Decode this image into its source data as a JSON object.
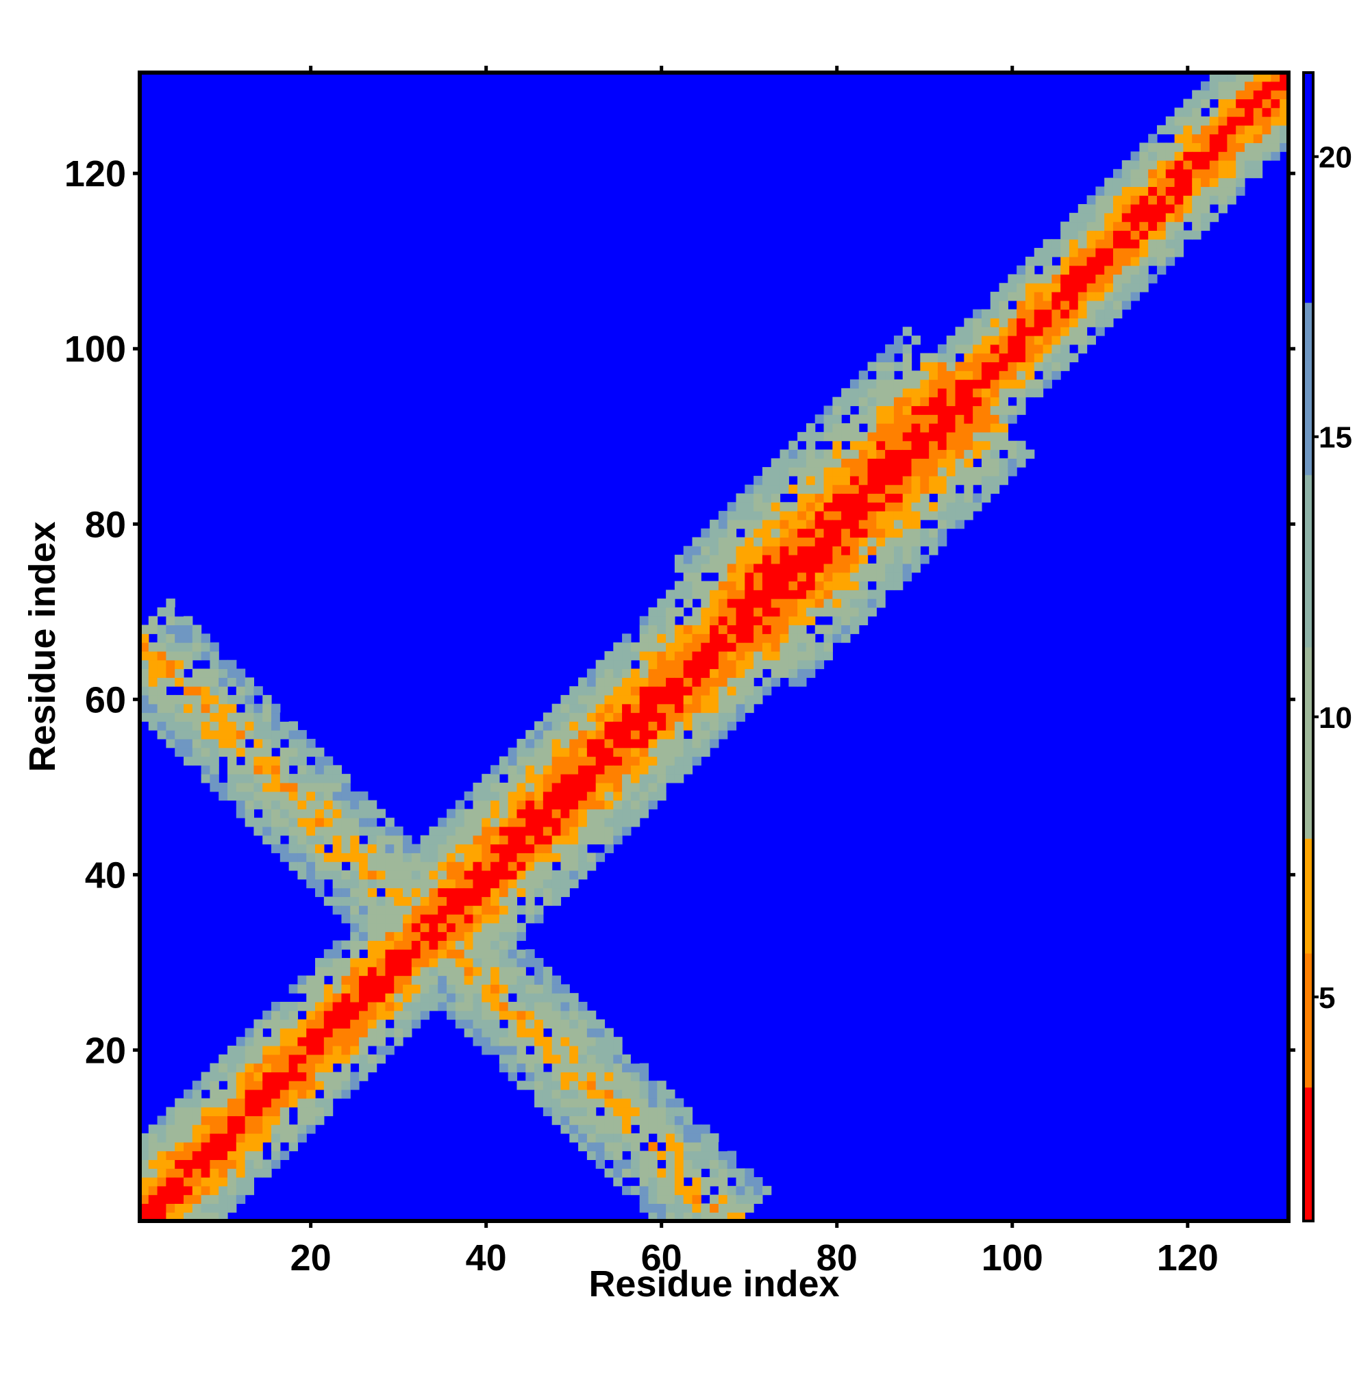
{
  "chart_data": {
    "type": "heatmap",
    "title": "",
    "xlabel": "Residue index",
    "ylabel": "Residue index",
    "xlim": [
      1,
      131
    ],
    "ylim": [
      1,
      131
    ],
    "x_ticks": [
      20,
      40,
      60,
      80,
      100,
      120
    ],
    "y_ticks": [
      20,
      40,
      60,
      80,
      100,
      120
    ],
    "n_residues": 131,
    "colorbar": {
      "min": 1,
      "max": 21.5,
      "ticks": [
        5,
        10,
        15,
        20
      ],
      "colors": [
        "#ff0000",
        "#ff8000",
        "#ffa500",
        "#9fb89a",
        "#8fb3a8",
        "#6f97c2",
        "#0000ff"
      ]
    },
    "value_description": "distance map: near-zero on the diagonal, increasing away from it, saturating at the maximum",
    "diagonal_band": [
      {
        "from": 1,
        "to": 36,
        "halfwidth": 9
      },
      {
        "from": 36,
        "to": 68,
        "halfwidth": 11
      },
      {
        "from": 68,
        "to": 95,
        "halfwidth": 14
      },
      {
        "from": 95,
        "to": 131,
        "halfwidth": 8
      }
    ],
    "anti_diagonal_band": {
      "start": [
        1,
        66
      ],
      "end": [
        67,
        1
      ],
      "halfwidth": 6
    }
  }
}
